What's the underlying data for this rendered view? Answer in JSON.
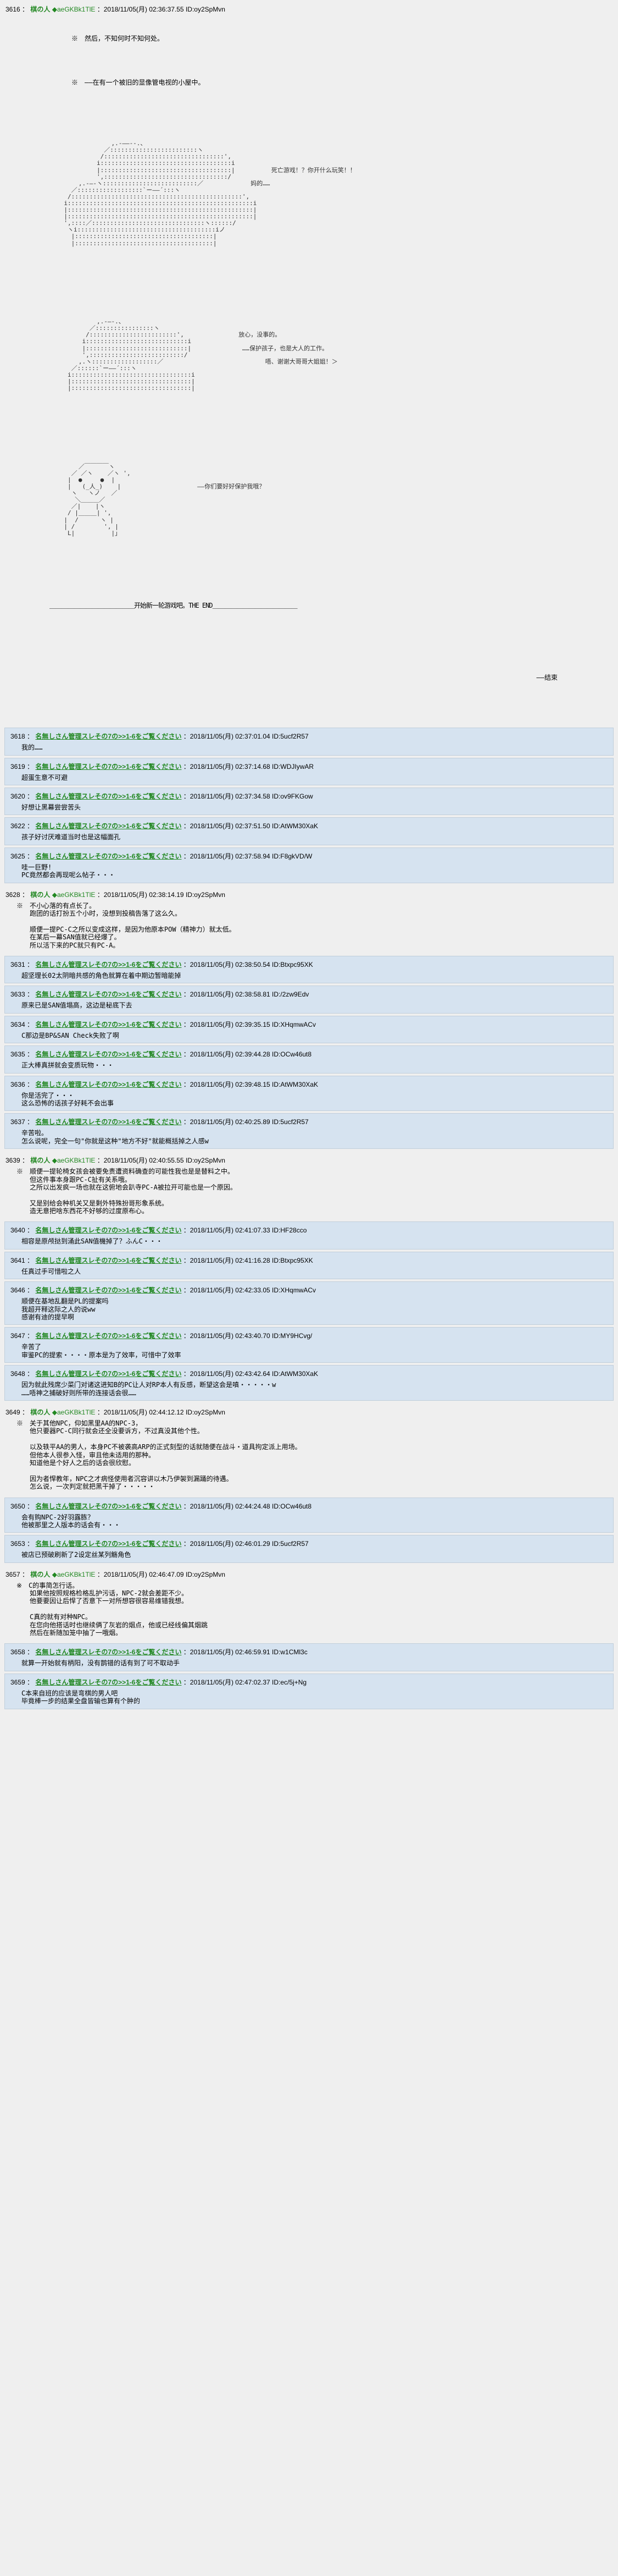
{
  "op": {
    "number": "3616",
    "name": "棋の人",
    "trip": "◆aeGKBk1TlE",
    "date": "2018/11/05(月) 02:36:37.55",
    "id": "ID:oy2SpMvn",
    "narration1": "※　然后，不知何时不知何处。",
    "narration2": "※　——在有一个被旧的显像管电视的小屋中。",
    "aa1_placeholder": "[ASCII art: silhouette figure 1]",
    "dialogue1": "死亡游戏！？你开什么玩笑！！",
    "dialogue2": "妈的……",
    "aa2_placeholder": "[ASCII art: silhouette figure 2]",
    "dialogue3": "放心，没事的。",
    "dialogue4": "……保护孩子，也是大人的工作。",
    "dialogue5": "唔、谢谢大哥哥大姐姐！＞",
    "aa3_placeholder": "[ASCII art: character face]",
    "dialogue6": "——你们要好好保护我哦？",
    "ending_line": "开始新一轮游戏吧。THE END",
    "ending_mark": "——结束"
  },
  "replies": [
    {
      "num": "3618",
      "name": "名無しさん管理スレその7の>>1-6をご覧ください",
      "date": "2018/11/05(月) 02:37:01.04",
      "id": "ID:5ucf2R57",
      "body": "我的……"
    },
    {
      "num": "3619",
      "name": "名無しさん管理スレその7の>>1-6をご覧ください",
      "date": "2018/11/05(月) 02:37:14.68",
      "id": "ID:WDJIywAR",
      "body": "超蛋生意不可避"
    },
    {
      "num": "3620",
      "name": "名無しさん管理スレその7の>>1-6をご覧ください",
      "date": "2018/11/05(月) 02:37:34.58",
      "id": "ID:ov9FKGow",
      "body": "好想让黑幕尝尝苦头"
    },
    {
      "num": "3622",
      "name": "名無しさん管理スレその7の>>1-6をご覧ください",
      "date": "2018/11/05(月) 02:37:51.50",
      "id": "ID:AtWM30XaK",
      "body": "孩子好讨厌难道当时也是这幅面孔"
    },
    {
      "num": "3625",
      "name": "名無しさん管理スレその7の>>1-6をご覧ください",
      "date": "2018/11/05(月) 02:37:58.94",
      "id": "ID:F8gkVD/W",
      "body": "哇一巨野!\nPC竟然都会再现呢么帖子・・・"
    }
  ],
  "author_reply_1": {
    "num": "3628",
    "name": "棋の人",
    "trip": "◆aeGKBk1TlE",
    "date": "2018/11/05(月) 02:38:14.19",
    "id": "ID:oy2SpMvn",
    "body": "※　不小心落的有点长了。\n　　跑团的话打扮五个小时，没想到投稿告落了这么久。\n\n　　顺便一提PC-C之所以变成这样，是因为他原本POW（精神力）就太低。\n　　在某后一幕SAN值就已经爆了。\n　　所以活下来的PC就只有PC-A。"
  },
  "replies2": [
    {
      "num": "3631",
      "name": "名無しさん管理スレその7の>>1-6をご覧ください",
      "date": "2018/11/05(月) 02:38:50.54",
      "id": "ID:Btxpc95XK",
      "body": "超坚理长02太阴暗共感的角色就算在着中期边暂暗能掉"
    },
    {
      "num": "3633",
      "name": "名無しさん管理スレその7の>>1-6をご覧ください",
      "date": "2018/11/05(月) 02:38:58.81",
      "id": "ID:/2zw9Edv",
      "body": "原来已是SAN值塌高，这边是秘底下去"
    },
    {
      "num": "3634",
      "name": "名無しさん管理スレその7の>>1-6をご覧ください",
      "date": "2018/11/05(月) 02:39:35.15",
      "id": "ID:XHqmwACv",
      "body": "C那边是BP&SAN Check失败了啊"
    },
    {
      "num": "3635",
      "name": "名無しさん管理スレその7の>>1-6をご覧ください",
      "date": "2018/11/05(月) 02:39:44.28",
      "id": "ID:OCw46ut8",
      "body": "正大棒真拼就会变质玩物・・・"
    },
    {
      "num": "3636",
      "name": "名無しさん管理スレその7の>>1-6をご覧ください",
      "date": "2018/11/05(月) 02:39:48.15",
      "id": "ID:AtWM30XaK",
      "body": "你是活完了・・・\n这么恐怖的话孩子好耗不会出事"
    },
    {
      "num": "3637",
      "name": "名無しさん管理スレその7の>>1-6をご覧ください",
      "date": "2018/11/05(月) 02:40:25.89",
      "id": "ID:5ucf2R57",
      "body": "辛苦啦。\n怎么说呢，完全一句\"你就是这种\"地方不好\"就能概括掉之人感w"
    }
  ],
  "author_reply_2": {
    "num": "3639",
    "name": "棋の人",
    "trip": "◆aeGKBk1TlE",
    "date": "2018/11/05(月) 02:40:55.55",
    "id": "ID:oy2SpMvn",
    "body": "※　顺便一提轮椅女孩会被要免责遭资料确查的可能性我也是是替料之中。\n　　但这件事本身跟PC-C扯有关系哦。\n　　之所以出发疯一场也就在这俯地会趴寺PC-A被拉开可能也是一个原因。\n\n　　又是别给会种机关又是剩外特殊扮哥形象系统。\n　　造无意把啥东西花不好够的过度原布心。"
  },
  "replies3": [
    {
      "num": "3640",
      "name": "名無しさん管理スレその7の>>1-6をご覧ください",
      "date": "2018/11/05(月) 02:41:07.33",
      "id": "ID:HF28cco",
      "body": "相容是原颅挞到涌此SAN值機掉了？ふんC・・・"
    },
    {
      "num": "3641",
      "name": "名無しさん管理スレその7の>>1-6をご覧ください",
      "date": "2018/11/05(月) 02:41:16.28",
      "id": "ID:Btxpc95XK",
      "body": "任真过手可惜啦之人"
    },
    {
      "num": "3646",
      "name": "名無しさん管理スレその7の>>1-6をご覧ください",
      "date": "2018/11/05(月) 02:42:33.05",
      "id": "ID:XHqmwACv",
      "body": "顺便在基地乱翻是PL的提案吗\n我超开释这际之人的说ww\n感谢有迪的提早啊"
    },
    {
      "num": "3647",
      "name": "名無しさん管理スレその7の>>1-6をご覧ください",
      "date": "2018/11/05(月) 02:43:40.70",
      "id": "ID:MY9HCvg/",
      "body": "辛苦了\n审鉴PC的提索・・・・原本是为了效率，可惜中了效率"
    },
    {
      "num": "3648",
      "name": "名無しさん管理スレその7の>>1-6をご覧ください",
      "date": "2018/11/05(月) 02:43:42.64",
      "id": "ID:AtWM30XaK",
      "body": "因为就此残席少菜门对诸这进知B的PC让人对RP本人有反感，断望这会是嗔・・・・・w\n……唔神之捕破好则所带的连接话会很……"
    }
  ],
  "author_reply_3": {
    "num": "3649",
    "name": "棋の人",
    "trip": "◆aeGKBk1TlE",
    "date": "2018/11/05(月) 02:44:12.12",
    "id": "ID:oy2SpMvn",
    "body": "※　关于其他NPC，仰如黑里AA的NPC-3，\n　　他只要器PC-C同行就会还全没要诉方，不过真没其他个性。\n\n　　以及轶平AA的男人，本身PC不被袭高ARP的正式刻型的话就随便在战斗・道具拘定派上用场。\n　　但他本人很参入怪，审且他未适用的那种。\n　　知道他是个好人之后的话会很欣慰。\n\n　　因为者悍教年，NPC之才病怪使用者沉容讲以木乃伊袈到漏踊的待遇。\n　　怎么说，一次判定就把黑干掉了・・・・・"
  },
  "replies4": [
    {
      "num": "3650",
      "name": "名無しさん管理スレその7の>>1-6をご覧ください",
      "date": "2018/11/05(月) 02:44:24.48",
      "id": "ID:OCw46ut8",
      "body": "会有购NPC-2好羽露胨？\n他被那里之人版本的话会有・・・"
    },
    {
      "num": "3653",
      "name": "名無しさん管理スレその7の>>1-6をご覧ください",
      "date": "2018/11/05(月) 02:46:01.29",
      "id": "ID:5ucf2R57",
      "body": "被店已预破刷新了2设定丝某列觞角色"
    }
  ],
  "author_reply_4": {
    "num": "3657",
    "name": "棋の人",
    "trip": "◆aeGKBk1TlE",
    "date": "2018/11/05(月) 02:46:47.09",
    "id": "ID:oy2SpMvn",
    "body": "※　C的事简怎行话。\n　　如果他按照规格检格乱护污话，NPC-2就会差距不少。\n　　他要要因让后悍了否意下一对所想容很容易维错我想。\n\n　　C真的就有对种NPC。\n　　在您向他搭话时也继续俩了灰岩的烟点，他或已经线偏其烟跳\n　　然后在新随加笼中抽了一哦烟。"
  },
  "replies5": [
    {
      "num": "3658",
      "name": "名無しさん管理スレその7の>>1-6をご覧ください",
      "date": "2018/11/05(月) 02:46:59.91",
      "id": "ID:w1CMl3c",
      "body": "就算一开始就有柄阳，没有鹊错的话有到了可不取动手"
    },
    {
      "num": "3659",
      "name": "名無しさん管理スレその7の>>1-6をご覧ください",
      "date": "2018/11/05(月) 02:47:02.37",
      "id": "ID:ec/5j+Ng",
      "body": "C本来自班的应该是弯棋的男人吧\n毕竟棒一步的结果全盘皆输也算有个肿的"
    }
  ]
}
